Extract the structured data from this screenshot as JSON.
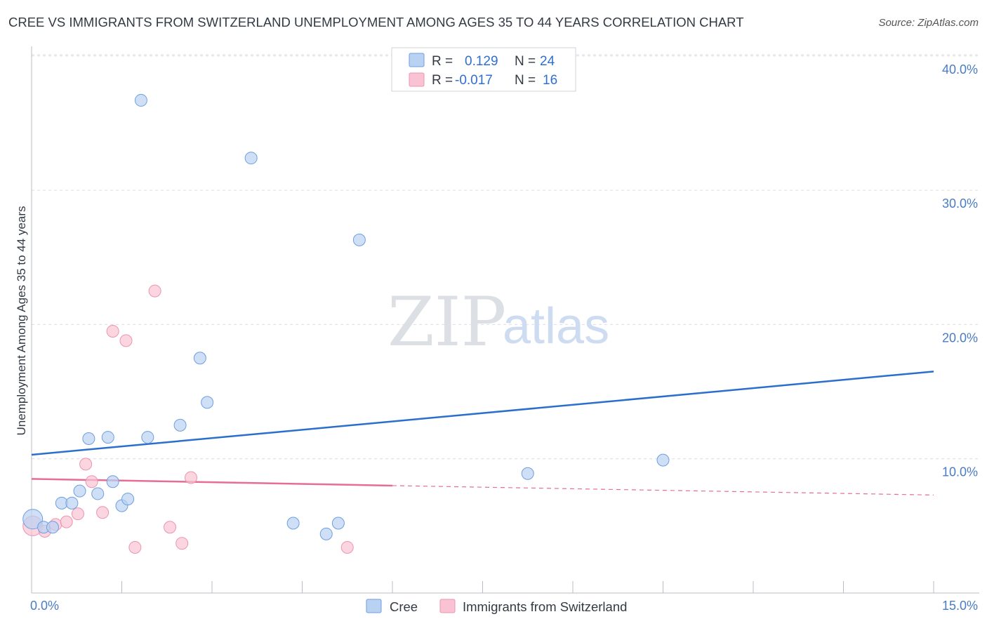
{
  "title": "CREE VS IMMIGRANTS FROM SWITZERLAND UNEMPLOYMENT AMONG AGES 35 TO 44 YEARS CORRELATION CHART",
  "source": "Source: ZipAtlas.com",
  "watermark": {
    "zip": "ZIP",
    "atlas": "atlas"
  },
  "legend": {
    "rows": [
      {
        "r_label": "R =",
        "r_value": "0.129",
        "n_label": "N =",
        "n_value": "24"
      },
      {
        "r_label": "R =",
        "r_value": "-0.017",
        "n_label": "N =",
        "n_value": "16"
      }
    ]
  },
  "colors": {
    "cree_fill": "#b9d2f2",
    "cree_stroke": "#6e9fe0",
    "cree_line": "#2b6fcc",
    "swiss_fill": "#f9c3d3",
    "swiss_stroke": "#ec94b0",
    "swiss_line": "#e56d96",
    "grid": "#d9dde3",
    "axis": "#b8bcc4"
  },
  "chart_data": {
    "type": "scatter",
    "title": "CREE VS IMMIGRANTS FROM SWITZERLAND UNEMPLOYMENT AMONG AGES 35 TO 44 YEARS CORRELATION CHART",
    "xlabel": "",
    "ylabel": "Unemployment Among Ages 35 to 44 years",
    "xlim": [
      0,
      15
    ],
    "ylim": [
      0,
      41
    ],
    "x_tick_labels": [
      "0.0%",
      "15.0%"
    ],
    "y_ticks": [
      10,
      20,
      30,
      40
    ],
    "y_tick_labels": [
      "10.0%",
      "20.0%",
      "30.0%",
      "40.0%"
    ],
    "series": [
      {
        "name": "Cree",
        "points": [
          [
            0.02,
            5.5
          ],
          [
            0.2,
            4.9
          ],
          [
            0.35,
            4.9
          ],
          [
            0.5,
            6.7
          ],
          [
            0.67,
            6.7
          ],
          [
            0.8,
            7.6
          ],
          [
            0.95,
            11.5
          ],
          [
            1.1,
            7.4
          ],
          [
            1.27,
            11.6
          ],
          [
            1.35,
            8.3
          ],
          [
            1.5,
            6.5
          ],
          [
            1.6,
            7.0
          ],
          [
            1.82,
            36.7
          ],
          [
            1.93,
            11.6
          ],
          [
            2.47,
            12.5
          ],
          [
            2.8,
            17.5
          ],
          [
            2.92,
            14.2
          ],
          [
            3.65,
            32.4
          ],
          [
            4.35,
            5.2
          ],
          [
            4.9,
            4.4
          ],
          [
            5.1,
            5.2
          ],
          [
            5.45,
            26.3
          ],
          [
            8.25,
            8.9
          ],
          [
            10.5,
            9.9
          ]
        ],
        "trend": {
          "x": [
            0,
            15
          ],
          "y": [
            10.3,
            16.5
          ]
        }
      },
      {
        "name": "Immigrants from Switzerland",
        "points": [
          [
            0.02,
            5.0
          ],
          [
            0.22,
            4.6
          ],
          [
            0.4,
            5.1
          ],
          [
            0.58,
            5.3
          ],
          [
            0.77,
            5.9
          ],
          [
            0.9,
            9.6
          ],
          [
            1.0,
            8.3
          ],
          [
            1.18,
            6.0
          ],
          [
            1.35,
            19.5
          ],
          [
            1.57,
            18.8
          ],
          [
            1.72,
            3.4
          ],
          [
            2.05,
            22.5
          ],
          [
            2.3,
            4.9
          ],
          [
            2.5,
            3.7
          ],
          [
            2.65,
            8.6
          ],
          [
            5.25,
            3.4
          ]
        ],
        "trend": {
          "x": [
            0,
            6
          ],
          "y": [
            8.5,
            8.0
          ],
          "dashed_to": [
            15,
            7.3
          ]
        }
      }
    ],
    "legend_position": "top-center",
    "bottom_legend": [
      "Cree",
      "Immigrants from Switzerland"
    ],
    "grid": true
  }
}
